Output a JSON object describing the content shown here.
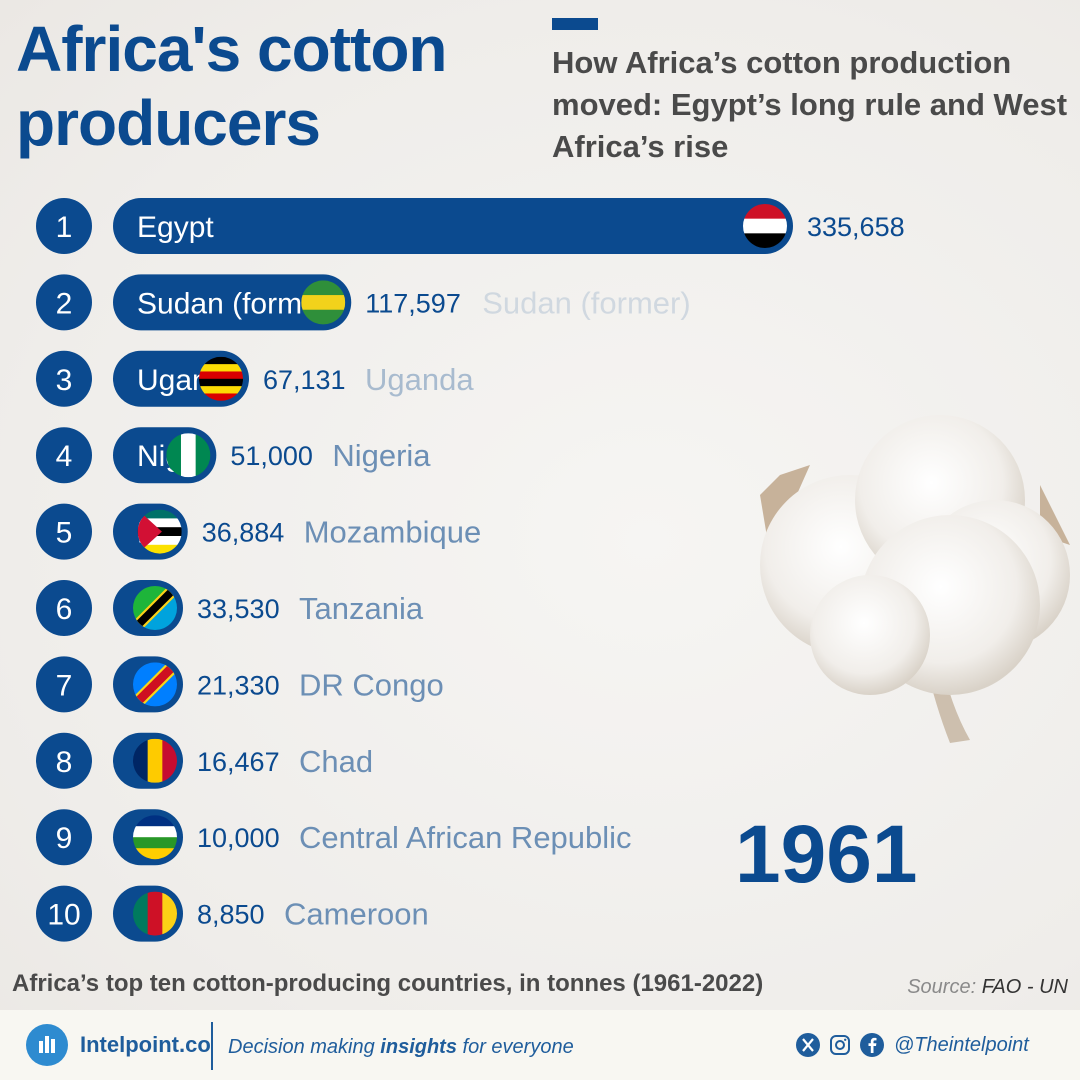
{
  "header": {
    "title_line1": "Africa's cotton",
    "title_line2": "producers",
    "subtitle": "How Africa’s cotton production moved: Egypt’s long rule and West Africa’s rise"
  },
  "chart_data": {
    "type": "bar",
    "orientation": "horizontal",
    "year": "1961",
    "unit": "tonnes",
    "max_value": 335658,
    "ranks": [
      "1",
      "2",
      "3",
      "4",
      "5",
      "6",
      "7",
      "8",
      "9",
      "10"
    ],
    "categories": [
      "Egypt",
      "Sudan (former)",
      "Uganda",
      "Nigeria",
      "Mozambique",
      "Tanzania",
      "DR Congo",
      "Chad",
      "Central African Republic",
      "Cameroon"
    ],
    "values": [
      335658,
      117597,
      67131,
      51000,
      36884,
      33530,
      21330,
      16467,
      10000,
      8850
    ],
    "value_labels": [
      "335,658",
      "117,597",
      "67,131",
      "51,000",
      "36,884",
      "33,530",
      "21,330",
      "16,467",
      "10,000",
      "8,850"
    ],
    "bar_color": "#0b4a8f"
  },
  "caption": "Africa’s top ten cotton-producing countries, in tonnes (1961-2022)",
  "source": {
    "label": "Source:",
    "value": "FAO - UN"
  },
  "footer": {
    "brand": "Intelpoint.co",
    "tagline_pre": "Decision making ",
    "tagline_bold": "insights",
    "tagline_post": " for everyone",
    "handle": "@Theintelpoint",
    "icons": [
      "x-icon",
      "instagram-icon",
      "facebook-icon"
    ]
  }
}
